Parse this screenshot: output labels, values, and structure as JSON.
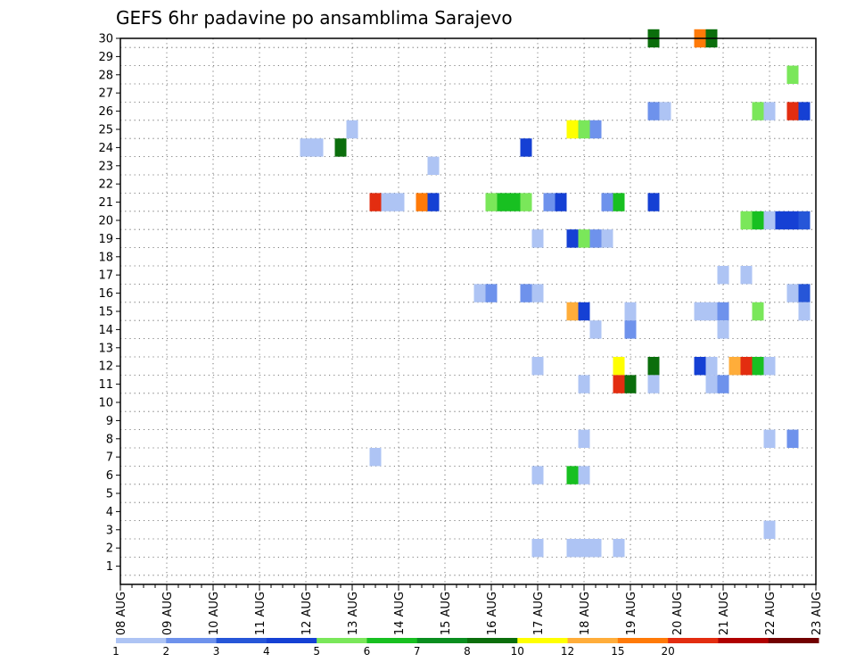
{
  "chart_data": {
    "type": "heatmap",
    "title": "GEFS 6hr padavine po ansamblima Sarajevo",
    "xlabel": "",
    "ylabel": "",
    "x_tick_labels": [
      "08 AUG",
      "09 AUG",
      "10 AUG",
      "11 AUG",
      "12 AUG",
      "13 AUG",
      "14 AUG",
      "15 AUG",
      "16 AUG",
      "17 AUG",
      "18 AUG",
      "19 AUG",
      "20 AUG",
      "21 AUG",
      "22 AUG",
      "23 AUG"
    ],
    "y_tick_labels": [
      "1",
      "2",
      "3",
      "4",
      "5",
      "6",
      "7",
      "8",
      "9",
      "10",
      "11",
      "12",
      "13",
      "14",
      "15",
      "16",
      "17",
      "18",
      "19",
      "20",
      "21",
      "22",
      "23",
      "24",
      "25",
      "26",
      "27",
      "28",
      "29",
      "30"
    ],
    "x_unit": "6-hour step from 08 AUG 00Z (4 steps per day)",
    "xlim": [
      0,
      60
    ],
    "ylim": [
      0,
      30
    ],
    "grid": true,
    "colorbar": {
      "position": "bottom",
      "labels": [
        "1",
        "2",
        "3",
        "4",
        "5",
        "6",
        "7",
        "8",
        "10",
        "12",
        "15",
        "20"
      ],
      "colors": [
        "#aec4f4",
        "#6e92ec",
        "#2656d8",
        "#1540d4",
        "#7ae75a",
        "#18c021",
        "#0a8e1f",
        "#0b6e0c",
        "#ffff00",
        "#ffad3a",
        "#ff7a08",
        "#e32d10",
        "#b00000",
        "#720000"
      ]
    },
    "cells": [
      {
        "member": 30,
        "step": 46,
        "color": "#0b6e0c"
      },
      {
        "member": 30,
        "step": 50,
        "color": "#ff7a08"
      },
      {
        "member": 30,
        "step": 51,
        "color": "#0b6e0c"
      },
      {
        "member": 28,
        "step": 58,
        "color": "#7ae75a"
      },
      {
        "member": 26,
        "step": 46,
        "color": "#6e92ec"
      },
      {
        "member": 26,
        "step": 47,
        "color": "#aec4f4"
      },
      {
        "member": 26,
        "step": 55,
        "color": "#7ae75a"
      },
      {
        "member": 26,
        "step": 56,
        "color": "#aec4f4"
      },
      {
        "member": 26,
        "step": 58,
        "color": "#e32d10"
      },
      {
        "member": 26,
        "step": 59,
        "color": "#1540d4"
      },
      {
        "member": 25,
        "step": 20,
        "color": "#aec4f4"
      },
      {
        "member": 25,
        "step": 39,
        "color": "#ffff00"
      },
      {
        "member": 25,
        "step": 40,
        "color": "#7ae75a"
      },
      {
        "member": 25,
        "step": 41,
        "color": "#6e92ec"
      },
      {
        "member": 24,
        "step": 16,
        "color": "#aec4f4"
      },
      {
        "member": 24,
        "step": 17,
        "color": "#aec4f4"
      },
      {
        "member": 24,
        "step": 19,
        "color": "#0b6e0c"
      },
      {
        "member": 24,
        "step": 35,
        "color": "#1540d4"
      },
      {
        "member": 23,
        "step": 27,
        "color": "#aec4f4"
      },
      {
        "member": 21,
        "step": 22,
        "color": "#e32d10"
      },
      {
        "member": 21,
        "step": 23,
        "color": "#aec4f4"
      },
      {
        "member": 21,
        "step": 24,
        "color": "#aec4f4"
      },
      {
        "member": 21,
        "step": 26,
        "color": "#ff7a08"
      },
      {
        "member": 21,
        "step": 27,
        "color": "#1540d4"
      },
      {
        "member": 21,
        "step": 32,
        "color": "#7ae75a"
      },
      {
        "member": 21,
        "step": 33,
        "color": "#18c021"
      },
      {
        "member": 21,
        "step": 34,
        "color": "#18c021"
      },
      {
        "member": 21,
        "step": 35,
        "color": "#7ae75a"
      },
      {
        "member": 21,
        "step": 37,
        "color": "#6e92ec"
      },
      {
        "member": 21,
        "step": 38,
        "color": "#1540d4"
      },
      {
        "member": 21,
        "step": 42,
        "color": "#6e92ec"
      },
      {
        "member": 21,
        "step": 43,
        "color": "#18c021"
      },
      {
        "member": 21,
        "step": 46,
        "color": "#1540d4"
      },
      {
        "member": 20,
        "step": 54,
        "color": "#7ae75a"
      },
      {
        "member": 20,
        "step": 55,
        "color": "#18c021"
      },
      {
        "member": 20,
        "step": 56,
        "color": "#aec4f4"
      },
      {
        "member": 20,
        "step": 57,
        "color": "#1540d4"
      },
      {
        "member": 20,
        "step": 58,
        "color": "#1540d4"
      },
      {
        "member": 20,
        "step": 59,
        "color": "#2656d8"
      },
      {
        "member": 19,
        "step": 36,
        "color": "#aec4f4"
      },
      {
        "member": 19,
        "step": 39,
        "color": "#1540d4"
      },
      {
        "member": 19,
        "step": 40,
        "color": "#7ae75a"
      },
      {
        "member": 19,
        "step": 41,
        "color": "#6e92ec"
      },
      {
        "member": 19,
        "step": 42,
        "color": "#aec4f4"
      },
      {
        "member": 17,
        "step": 52,
        "color": "#aec4f4"
      },
      {
        "member": 17,
        "step": 54,
        "color": "#aec4f4"
      },
      {
        "member": 16,
        "step": 31,
        "color": "#aec4f4"
      },
      {
        "member": 16,
        "step": 32,
        "color": "#6e92ec"
      },
      {
        "member": 16,
        "step": 35,
        "color": "#6e92ec"
      },
      {
        "member": 16,
        "step": 36,
        "color": "#aec4f4"
      },
      {
        "member": 16,
        "step": 58,
        "color": "#aec4f4"
      },
      {
        "member": 16,
        "step": 59,
        "color": "#2656d8"
      },
      {
        "member": 15,
        "step": 39,
        "color": "#ffad3a"
      },
      {
        "member": 15,
        "step": 40,
        "color": "#1540d4"
      },
      {
        "member": 15,
        "step": 44,
        "color": "#aec4f4"
      },
      {
        "member": 15,
        "step": 50,
        "color": "#aec4f4"
      },
      {
        "member": 15,
        "step": 51,
        "color": "#aec4f4"
      },
      {
        "member": 15,
        "step": 52,
        "color": "#6e92ec"
      },
      {
        "member": 15,
        "step": 55,
        "color": "#7ae75a"
      },
      {
        "member": 15,
        "step": 59,
        "color": "#aec4f4"
      },
      {
        "member": 14,
        "step": 41,
        "color": "#aec4f4"
      },
      {
        "member": 14,
        "step": 44,
        "color": "#6e92ec"
      },
      {
        "member": 14,
        "step": 52,
        "color": "#aec4f4"
      },
      {
        "member": 12,
        "step": 36,
        "color": "#aec4f4"
      },
      {
        "member": 12,
        "step": 43,
        "color": "#ffff00"
      },
      {
        "member": 12,
        "step": 46,
        "color": "#0b6e0c"
      },
      {
        "member": 12,
        "step": 50,
        "color": "#1540d4"
      },
      {
        "member": 12,
        "step": 51,
        "color": "#aec4f4"
      },
      {
        "member": 12,
        "step": 53,
        "color": "#ffad3a"
      },
      {
        "member": 12,
        "step": 54,
        "color": "#e32d10"
      },
      {
        "member": 12,
        "step": 55,
        "color": "#18c021"
      },
      {
        "member": 12,
        "step": 56,
        "color": "#aec4f4"
      },
      {
        "member": 11,
        "step": 40,
        "color": "#aec4f4"
      },
      {
        "member": 11,
        "step": 43,
        "color": "#e32d10"
      },
      {
        "member": 11,
        "step": 44,
        "color": "#0b6e0c"
      },
      {
        "member": 11,
        "step": 46,
        "color": "#aec4f4"
      },
      {
        "member": 11,
        "step": 51,
        "color": "#aec4f4"
      },
      {
        "member": 11,
        "step": 52,
        "color": "#6e92ec"
      },
      {
        "member": 8,
        "step": 40,
        "color": "#aec4f4"
      },
      {
        "member": 8,
        "step": 56,
        "color": "#aec4f4"
      },
      {
        "member": 8,
        "step": 58,
        "color": "#6e92ec"
      },
      {
        "member": 7,
        "step": 22,
        "color": "#aec4f4"
      },
      {
        "member": 6,
        "step": 36,
        "color": "#aec4f4"
      },
      {
        "member": 6,
        "step": 39,
        "color": "#18c021"
      },
      {
        "member": 6,
        "step": 40,
        "color": "#aec4f4"
      },
      {
        "member": 3,
        "step": 56,
        "color": "#aec4f4"
      },
      {
        "member": 2,
        "step": 36,
        "color": "#aec4f4"
      },
      {
        "member": 2,
        "step": 39,
        "color": "#aec4f4"
      },
      {
        "member": 2,
        "step": 40,
        "color": "#aec4f4"
      },
      {
        "member": 2,
        "step": 41,
        "color": "#aec4f4"
      },
      {
        "member": 2,
        "step": 43,
        "color": "#aec4f4"
      }
    ]
  }
}
